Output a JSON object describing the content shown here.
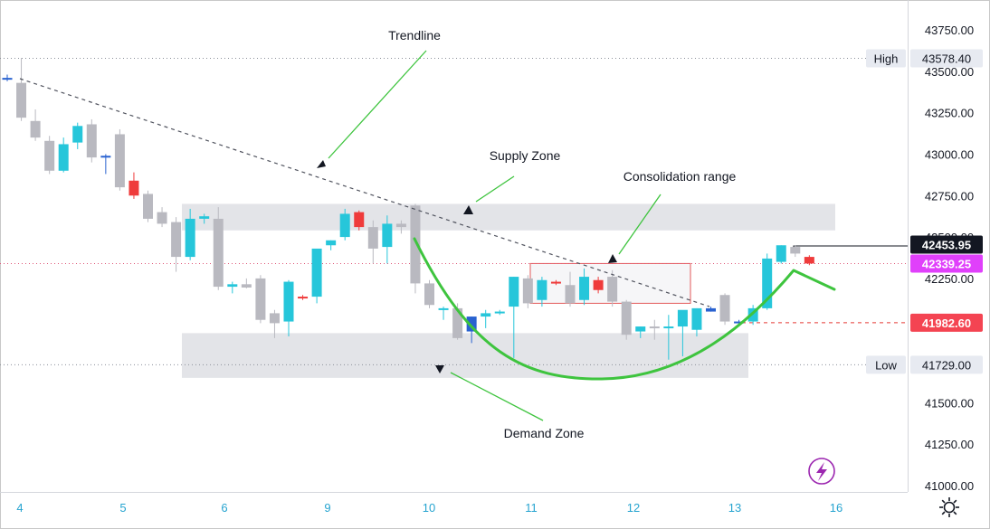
{
  "chart_data": {
    "type": "candlestick",
    "colors": {
      "up": "#26c6da",
      "down": "#b9b9c0",
      "down_red": "#ef3b3b",
      "up_blue": "#2962d0",
      "zone": "#e3e4e8",
      "trend_arrow": "#3ec43e",
      "price_line_dotted": "#e05577",
      "axis_text": "#131722",
      "time_text": "#26a4d0"
    },
    "y_axis": {
      "min": 41000,
      "max": 43750,
      "ticks": [
        "41000.00",
        "41250.00",
        "41500.00",
        "41750.00",
        "42000.00",
        "42250.00",
        "42500.00",
        "42750.00",
        "43000.00",
        "43250.00",
        "43500.00",
        "43750.00"
      ]
    },
    "x_axis": {
      "ticks": [
        "4",
        "5",
        "6",
        "9",
        "10",
        "11",
        "12",
        "13",
        "16"
      ]
    },
    "price_labels": [
      {
        "tag": "High",
        "value": "43578.40",
        "style": "plain"
      },
      {
        "tag": "",
        "value": "42453.95",
        "style": "dark"
      },
      {
        "tag": "",
        "value": "42339.25",
        "style": "magenta"
      },
      {
        "tag": "",
        "value": "41982.60",
        "style": "red"
      },
      {
        "tag": "Low",
        "value": "41729.00",
        "style": "plain"
      }
    ],
    "annotations": {
      "trendline": "Trendline",
      "supply": "Supply Zone",
      "consolidation": "Consolidation range",
      "demand": "Demand Zone"
    },
    "supply_zone": [
      42540,
      42700
    ],
    "demand_zone": [
      41650,
      41920
    ],
    "consolidation_box": [
      42100,
      42340
    ],
    "candles": [
      {
        "o": 43450,
        "h": 43480,
        "l": 43440,
        "c": 43460,
        "k": "up_blue"
      },
      {
        "o": 43430,
        "h": 43580,
        "l": 43200,
        "c": 43220,
        "k": "down"
      },
      {
        "o": 43200,
        "h": 43270,
        "l": 43080,
        "c": 43100,
        "k": "down"
      },
      {
        "o": 43080,
        "h": 43110,
        "l": 42880,
        "c": 42900,
        "k": "down"
      },
      {
        "o": 42900,
        "h": 43100,
        "l": 42890,
        "c": 43060,
        "k": "up"
      },
      {
        "o": 43070,
        "h": 43190,
        "l": 43030,
        "c": 43170,
        "k": "up"
      },
      {
        "o": 43180,
        "h": 43210,
        "l": 42950,
        "c": 42980,
        "k": "down"
      },
      {
        "o": 42980,
        "h": 43000,
        "l": 42880,
        "c": 42990,
        "k": "up_blue"
      },
      {
        "o": 43120,
        "h": 43150,
        "l": 42780,
        "c": 42800,
        "k": "down"
      },
      {
        "o": 42840,
        "h": 42890,
        "l": 42730,
        "c": 42750,
        "k": "down_red"
      },
      {
        "o": 42760,
        "h": 42780,
        "l": 42590,
        "c": 42610,
        "k": "down"
      },
      {
        "o": 42650,
        "h": 42680,
        "l": 42560,
        "c": 42580,
        "k": "down"
      },
      {
        "o": 42590,
        "h": 42620,
        "l": 42290,
        "c": 42380,
        "k": "down"
      },
      {
        "o": 42380,
        "h": 42670,
        "l": 42360,
        "c": 42610,
        "k": "up"
      },
      {
        "o": 42610,
        "h": 42640,
        "l": 42580,
        "c": 42625,
        "k": "up"
      },
      {
        "o": 42610,
        "h": 42680,
        "l": 42180,
        "c": 42200,
        "k": "down"
      },
      {
        "o": 42200,
        "h": 42230,
        "l": 42160,
        "c": 42215,
        "k": "up"
      },
      {
        "o": 42215,
        "h": 42250,
        "l": 42190,
        "c": 42195,
        "k": "down"
      },
      {
        "o": 42250,
        "h": 42270,
        "l": 41980,
        "c": 42000,
        "k": "down"
      },
      {
        "o": 42040,
        "h": 42060,
        "l": 41890,
        "c": 41980,
        "k": "down"
      },
      {
        "o": 41990,
        "h": 42240,
        "l": 41900,
        "c": 42230,
        "k": "up"
      },
      {
        "o": 42140,
        "h": 42150,
        "l": 42120,
        "c": 42130,
        "k": "down_red"
      },
      {
        "o": 42140,
        "h": 42420,
        "l": 42100,
        "c": 42430,
        "k": "up"
      },
      {
        "o": 42450,
        "h": 42480,
        "l": 42420,
        "c": 42480,
        "k": "up"
      },
      {
        "o": 42500,
        "h": 42670,
        "l": 42480,
        "c": 42640,
        "k": "up"
      },
      {
        "o": 42650,
        "h": 42660,
        "l": 42540,
        "c": 42560,
        "k": "down_red"
      },
      {
        "o": 42560,
        "h": 42600,
        "l": 42340,
        "c": 42430,
        "k": "down"
      },
      {
        "o": 42440,
        "h": 42630,
        "l": 42340,
        "c": 42580,
        "k": "up"
      },
      {
        "o": 42560,
        "h": 42600,
        "l": 42520,
        "c": 42580,
        "k": "down"
      },
      {
        "o": 42690,
        "h": 42700,
        "l": 42160,
        "c": 42220,
        "k": "down"
      },
      {
        "o": 42220,
        "h": 42240,
        "l": 42070,
        "c": 42090,
        "k": "down"
      },
      {
        "o": 42070,
        "h": 42080,
        "l": 42000,
        "c": 42060,
        "k": "up"
      },
      {
        "o": 42070,
        "h": 42100,
        "l": 41880,
        "c": 41890,
        "k": "down"
      },
      {
        "o": 41930,
        "h": 42020,
        "l": 41860,
        "c": 42020,
        "k": "up_blue"
      },
      {
        "o": 42020,
        "h": 42060,
        "l": 41950,
        "c": 42040,
        "k": "up"
      },
      {
        "o": 42050,
        "h": 42060,
        "l": 42030,
        "c": 42040,
        "k": "up"
      },
      {
        "o": 42080,
        "h": 42260,
        "l": 41770,
        "c": 42260,
        "k": "up"
      },
      {
        "o": 42250,
        "h": 42270,
        "l": 42070,
        "c": 42100,
        "k": "down"
      },
      {
        "o": 42120,
        "h": 42260,
        "l": 42080,
        "c": 42240,
        "k": "up"
      },
      {
        "o": 42225,
        "h": 42240,
        "l": 42210,
        "c": 42230,
        "k": "down_red"
      },
      {
        "o": 42210,
        "h": 42290,
        "l": 42080,
        "c": 42100,
        "k": "down"
      },
      {
        "o": 42120,
        "h": 42310,
        "l": 42090,
        "c": 42260,
        "k": "up"
      },
      {
        "o": 42240,
        "h": 42260,
        "l": 42160,
        "c": 42180,
        "k": "down_red"
      },
      {
        "o": 42260,
        "h": 42300,
        "l": 42080,
        "c": 42110,
        "k": "down"
      },
      {
        "o": 42110,
        "h": 42120,
        "l": 41880,
        "c": 41910,
        "k": "down"
      },
      {
        "o": 41930,
        "h": 41960,
        "l": 41890,
        "c": 41960,
        "k": "up"
      },
      {
        "o": 41960,
        "h": 42000,
        "l": 41880,
        "c": 41950,
        "k": "down"
      },
      {
        "o": 41960,
        "h": 42030,
        "l": 41760,
        "c": 41960,
        "k": "up"
      },
      {
        "o": 41960,
        "h": 42040,
        "l": 41780,
        "c": 42060,
        "k": "up"
      },
      {
        "o": 41940,
        "h": 42070,
        "l": 41900,
        "c": 42070,
        "k": "up"
      },
      {
        "o": 42050,
        "h": 42080,
        "l": 42050,
        "c": 42070,
        "k": "up_blue"
      },
      {
        "o": 42150,
        "h": 42160,
        "l": 41970,
        "c": 41990,
        "k": "down"
      },
      {
        "o": 41980,
        "h": 42000,
        "l": 41960,
        "c": 41990,
        "k": "up_blue"
      },
      {
        "o": 41990,
        "h": 42090,
        "l": 41970,
        "c": 42070,
        "k": "up"
      },
      {
        "o": 42070,
        "h": 42400,
        "l": 42060,
        "c": 42370,
        "k": "up"
      },
      {
        "o": 42350,
        "h": 42450,
        "l": 42340,
        "c": 42450,
        "k": "up"
      },
      {
        "o": 42440,
        "h": 42450,
        "l": 42380,
        "c": 42400,
        "k": "down"
      },
      {
        "o": 42380,
        "h": 42390,
        "l": 42330,
        "c": 42340,
        "k": "down_red"
      }
    ]
  }
}
